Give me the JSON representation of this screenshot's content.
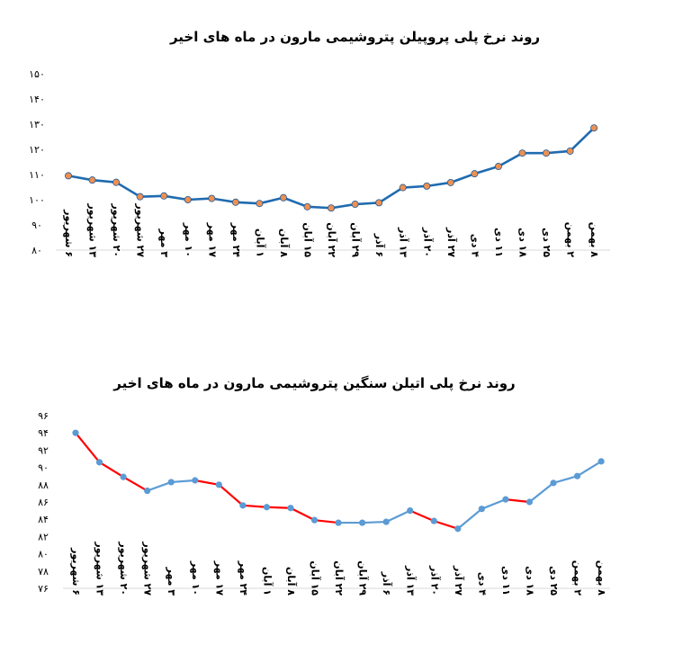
{
  "chart_data": [
    {
      "type": "line",
      "title": "روند نرخ پلی پروپیلن پتروشیمی مارون در ماه های اخیر",
      "xlabel": "",
      "ylabel": "",
      "ylim": [
        80,
        150
      ],
      "yticks": [
        80,
        90,
        100,
        110,
        120,
        130,
        140,
        150
      ],
      "ytick_labels": [
        "۸۰",
        "۹۰",
        "۱۰۰",
        "۱۱۰",
        "۱۲۰",
        "۱۳۰",
        "۱۴۰",
        "۱۵۰"
      ],
      "grid": false,
      "legend": "none",
      "categories": [
        "۶ شهریور",
        "۱۳ شهریور",
        "۲۰ شهریور",
        "۲۷ شهریور",
        "۳ مهر",
        "۱۰ مهر",
        "۱۷ مهر",
        "۲۴ مهر",
        "۱ آبان",
        "۸ آبان",
        "۱۵ آبان",
        "۲۲ آبان",
        "۲۹ آبان",
        "۶ آذر",
        "۱۳ آذر",
        "۲۰ آذر",
        "۲۷ آذر",
        "۴ دی",
        "۱۱ دی",
        "۱۸ دی",
        "۲۵ دی",
        "۲ بهمن",
        "۸ بهمن"
      ],
      "series": [
        {
          "values": [
            109.5,
            107.8,
            106.9,
            101.2,
            101.5,
            100.0,
            100.5,
            99.0,
            98.5,
            100.8,
            97.2,
            96.7,
            98.2,
            98.8,
            104.8,
            105.4,
            106.8,
            110.3,
            113.2,
            118.5,
            118.5,
            119.3,
            128.5
          ],
          "line_color": "#1f6bb0",
          "marker_color": "#ed9052"
        }
      ]
    },
    {
      "type": "line",
      "title": "روند نرخ پلی اتیلن سنگین پتروشیمی مارون در ماه های اخیر",
      "xlabel": "",
      "ylabel": "",
      "ylim": [
        76,
        96
      ],
      "yticks": [
        76,
        78,
        80,
        82,
        84,
        86,
        88,
        90,
        92,
        94,
        96
      ],
      "ytick_labels": [
        "۷۶",
        "۷۸",
        "۸۰",
        "۸۲",
        "۸۴",
        "۸۶",
        "۸۸",
        "۹۰",
        "۹۲",
        "۹۴",
        "۹۶"
      ],
      "grid": false,
      "legend": "none",
      "categories": [
        "۶ شهریور",
        "۱۳ شهریور",
        "۲۰ شهریور",
        "۲۷ شهریور",
        "۳ مهر",
        "۱۰ مهر",
        "۱۷ مهر",
        "۲۴ مهر",
        "۱ آبان",
        "۸ آبان",
        "۱۵ آبان",
        "۲۲ آبان",
        "۲۹ آبان",
        "۶ آذر",
        "۱۳ آذر",
        "۲۰ آذر",
        "۲۷ آذر",
        "۴ دی",
        "۱۱ دی",
        "۱۸ دی",
        "۲۵ دی",
        "۲ بهمن",
        "۸ بهمن"
      ],
      "series": [
        {
          "values": [
            94.0,
            90.6,
            88.9,
            87.3,
            88.3,
            88.5,
            88.0,
            85.6,
            85.4,
            85.3,
            83.9,
            83.6,
            83.6,
            83.7,
            85.0,
            83.8,
            82.9,
            85.2,
            86.3,
            86.0,
            88.2,
            89.0,
            90.7
          ],
          "line_color": "#5b9bd5",
          "down_color": "#ff0000",
          "marker_color": "#5b9bd5"
        }
      ]
    }
  ]
}
